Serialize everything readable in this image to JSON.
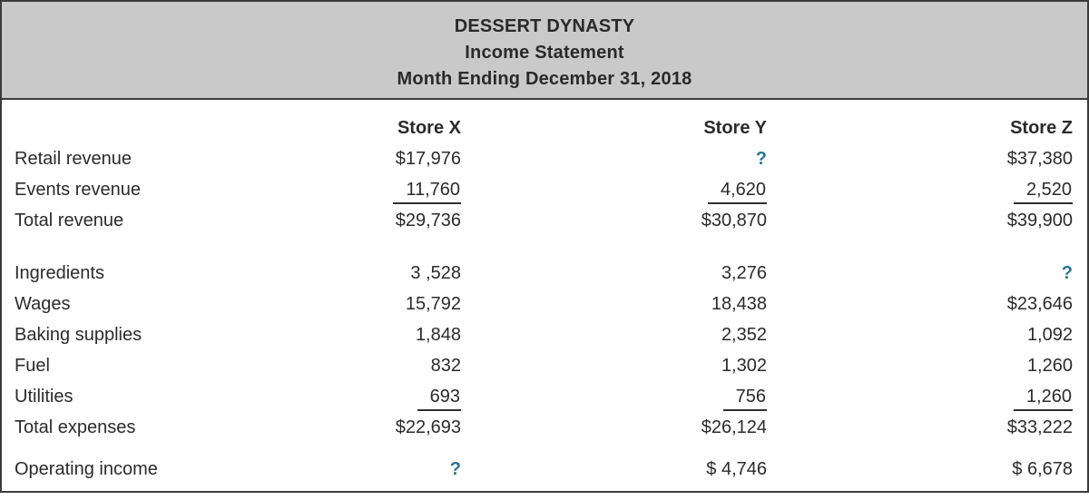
{
  "colors": {
    "accent": "#2e7293",
    "header_bg": "#c9c9c9",
    "border": "#3b3b3b",
    "text": "#2b2b2b"
  },
  "header": {
    "company": "DESSERT DYNASTY",
    "statement": "Income Statement",
    "period": "Month Ending December 31, 2018"
  },
  "table": {
    "columns": {
      "x": "Store X",
      "y": "Store Y",
      "z": "Store Z"
    },
    "revenue": {
      "retail": {
        "label": "Retail revenue",
        "x": "$17,976",
        "y": "?",
        "z": "$37,380"
      },
      "events": {
        "label": "Events revenue",
        "x": "11,760",
        "y": "4,620",
        "z": "2,520"
      },
      "total": {
        "label": "Total revenue",
        "x": "$29,736",
        "y": "$30,870",
        "z": "$39,900"
      }
    },
    "expenses": {
      "ingredients": {
        "label": "Ingredients",
        "x": "3 ,528",
        "y": "3,276",
        "z": "?"
      },
      "wages": {
        "label": "Wages",
        "x": "15,792",
        "y": "18,438",
        "z": "$23,646"
      },
      "baking_supplies": {
        "label": "Baking supplies",
        "x": "1,848",
        "y": "2,352",
        "z": "1,092"
      },
      "fuel": {
        "label": "Fuel",
        "x": "832",
        "y": "1,302",
        "z": "1,260"
      },
      "utilities": {
        "label": "Utilities",
        "x": "693",
        "y": "756",
        "z": "1,260"
      },
      "total": {
        "label": "Total expenses",
        "x": "$22,693",
        "y": "$26,124",
        "z": "$33,222"
      }
    },
    "operating_income": {
      "label": "Operating income",
      "x": "?",
      "y": "$ 4,746",
      "z": "$ 6,678"
    }
  }
}
